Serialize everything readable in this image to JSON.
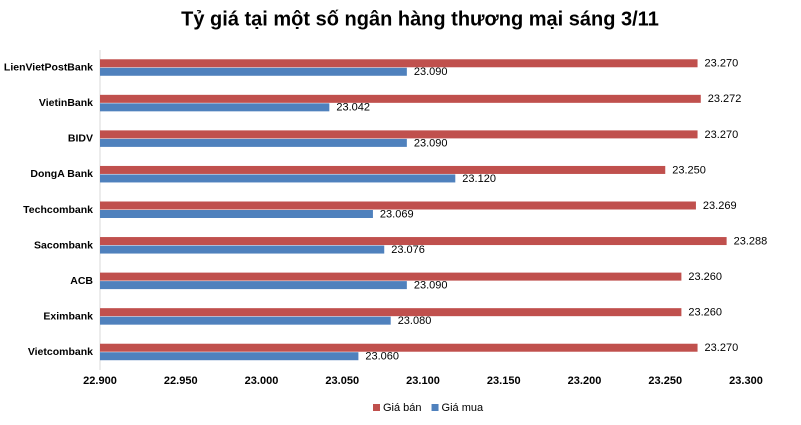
{
  "chart_data": {
    "type": "hbar",
    "title": "Tỷ giá tại một số ngân hàng thương mại sáng 3/11",
    "categories": [
      "LienVietPostBank",
      "VietinBank",
      "BIDV",
      "DongA Bank",
      "Techcombank",
      "Sacombank",
      "ACB",
      "Eximbank",
      "Vietcombank"
    ],
    "series": [
      {
        "name": "Giá bán",
        "color": "#c0504d",
        "values": [
          23270,
          23272,
          23270,
          23250,
          23269,
          23288,
          23260,
          23260,
          23270
        ],
        "value_labels": [
          "23.270",
          "23.272",
          "23.270",
          "23.250",
          "23.269",
          "23.288",
          "23.260",
          "23.260",
          "23.270"
        ]
      },
      {
        "name": "Giá mua",
        "color": "#4f81bd",
        "values": [
          23090,
          23042,
          23090,
          23120,
          23069,
          23076,
          23090,
          23080,
          23060
        ],
        "value_labels": [
          "23.090",
          "23.042",
          "23.090",
          "23.120",
          "23.069",
          "23.076",
          "23.090",
          "23.080",
          "23.060"
        ]
      }
    ],
    "xlim": [
      22900,
      23300
    ],
    "xticks": [
      {
        "value": 22900,
        "label": "22.900"
      },
      {
        "value": 22950,
        "label": "22.950"
      },
      {
        "value": 23000,
        "label": "23.000"
      },
      {
        "value": 23050,
        "label": "23.050"
      },
      {
        "value": 23100,
        "label": "23.100"
      },
      {
        "value": 23150,
        "label": "23.150"
      },
      {
        "value": 23200,
        "label": "23.200"
      },
      {
        "value": 23250,
        "label": "23.250"
      },
      {
        "value": 23300,
        "label": "23.300"
      }
    ],
    "grid": false,
    "legend": "bottom"
  }
}
